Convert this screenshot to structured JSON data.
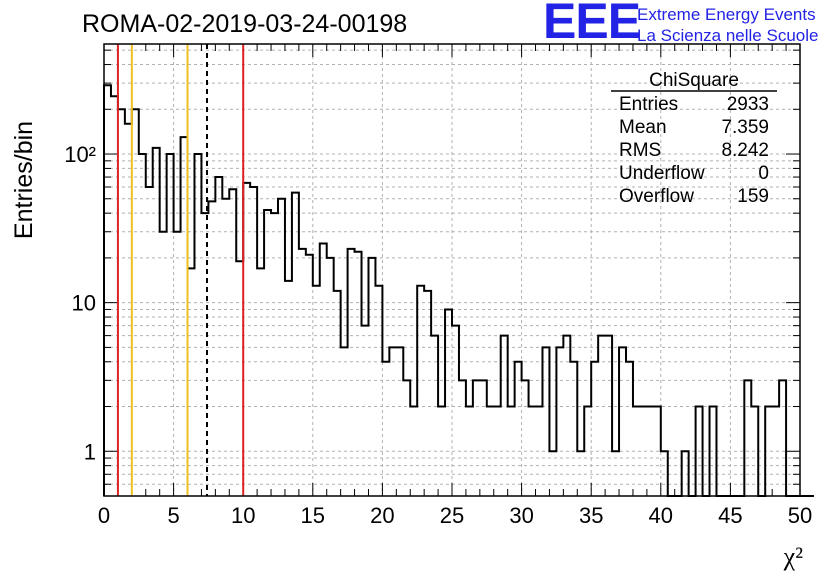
{
  "header": {
    "title": "ROMA-02-2019-03-24-00198",
    "logo_mark": "EEE",
    "logo_line1": "Extreme Energy Events",
    "logo_line2": "La Scienza nelle Scuole"
  },
  "stats": {
    "name": "ChiSquare",
    "rows": [
      {
        "label": "Entries",
        "value": "2933"
      },
      {
        "label": "Mean",
        "value": "7.359"
      },
      {
        "label": "RMS",
        "value": "8.242"
      },
      {
        "label": "Underflow",
        "value": "0"
      },
      {
        "label": "Overflow",
        "value": "159"
      }
    ]
  },
  "colors": {
    "red_line": "#e02020",
    "yellow_line": "#f0c020",
    "histogram": "#000000",
    "grid": "#b0b0b0"
  },
  "chart_data": {
    "type": "bar",
    "histogram": true,
    "ylabel": "Entries/bin",
    "xlabel": "χ²",
    "xlim": [
      0,
      50
    ],
    "ylim": [
      0.5,
      550
    ],
    "y_scale": "log",
    "grid": true,
    "bin_width": 0.5,
    "x_ticks": [
      "0",
      "5",
      "10",
      "15",
      "20",
      "25",
      "30",
      "35",
      "40",
      "45",
      "50"
    ],
    "y_ticks": [
      {
        "value": 1,
        "label": "1"
      },
      {
        "value": 10,
        "label": "10"
      },
      {
        "value": 100,
        "label": "10²"
      }
    ],
    "values": [
      290,
      245,
      200,
      160,
      200,
      100,
      60,
      110,
      30,
      100,
      30,
      130,
      17,
      100,
      40,
      48,
      70,
      50,
      58,
      19,
      64,
      60,
      17,
      42,
      40,
      50,
      14,
      55,
      23,
      21,
      13,
      25,
      20,
      12,
      5,
      23,
      22,
      7,
      20,
      13,
      4,
      5,
      5,
      3,
      2,
      13,
      12,
      6,
      2,
      9,
      7,
      3,
      2,
      3,
      3,
      2,
      2,
      6,
      2,
      4,
      3,
      2,
      2,
      5,
      1,
      5,
      6,
      4,
      1,
      2,
      4,
      6,
      6,
      1,
      5,
      4,
      2,
      2,
      2,
      2,
      1,
      0,
      0,
      1,
      0,
      2,
      0,
      2,
      0,
      0,
      0,
      0,
      3,
      2,
      0,
      2,
      2,
      3,
      0,
      0,
      0,
      0
    ],
    "vertical_lines": [
      {
        "x": 1,
        "color": "red",
        "style": "solid"
      },
      {
        "x": 2,
        "color": "yellow",
        "style": "solid"
      },
      {
        "x": 6,
        "color": "yellow",
        "style": "solid"
      },
      {
        "x": 7.4,
        "color": "black",
        "style": "dashed"
      },
      {
        "x": 10,
        "color": "red",
        "style": "solid"
      }
    ]
  }
}
